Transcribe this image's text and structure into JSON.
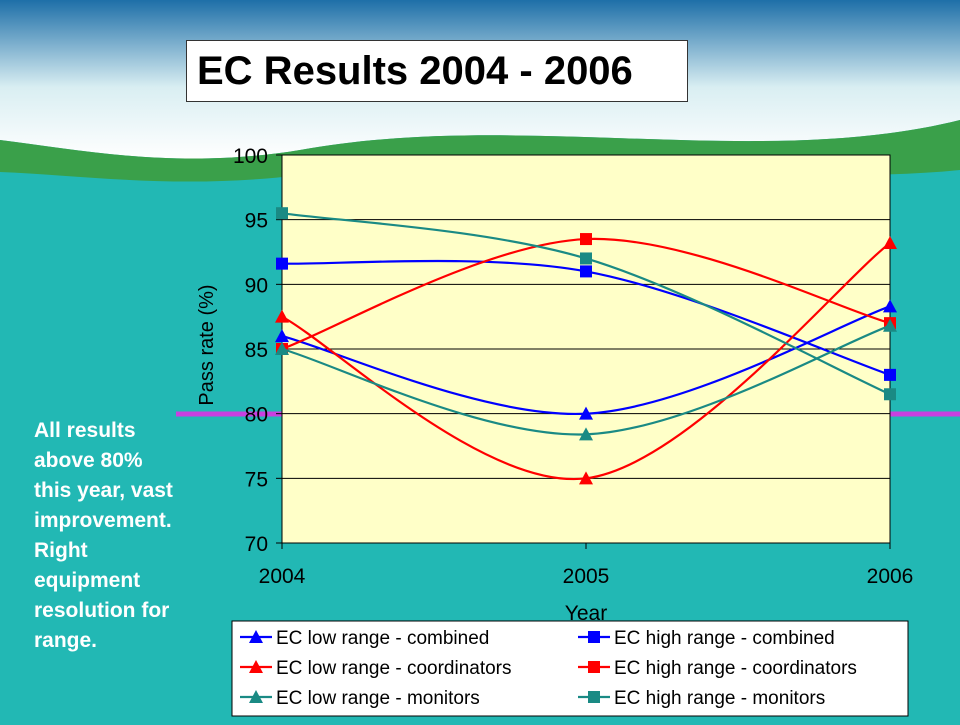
{
  "slide": {
    "title": "EC Results 2004 - 2006",
    "note_lines": [
      "All results",
      "above 80%",
      "this year, vast",
      "improvement.",
      "Right",
      "equipment",
      "resolution for",
      "range."
    ],
    "background_color": "#22b8b4",
    "banner_colors": [
      "#1e6fa8",
      "#d9eef2",
      "#3aa04a"
    ],
    "threshold_line_color": "#c840e0",
    "plot_background_color": "#ffffc8",
    "threshold_value": 80
  },
  "chart_data": {
    "type": "line",
    "title": "",
    "xlabel": "Year",
    "ylabel": "Pass rate (%)",
    "categories": [
      "2004",
      "2005",
      "2006"
    ],
    "ylim": [
      70,
      100
    ],
    "yticks": [
      70,
      75,
      80,
      85,
      90,
      95,
      100
    ],
    "grid": "horizontal",
    "legend_position": "bottom",
    "series": [
      {
        "name": "EC low range - combined",
        "color": "#0000ff",
        "marker": "triangle",
        "values": [
          86,
          80,
          88.3
        ]
      },
      {
        "name": "EC high range - combined",
        "color": "#0000ff",
        "marker": "square",
        "values": [
          91.6,
          91,
          83
        ]
      },
      {
        "name": "EC low range - coordinators",
        "color": "#ff0000",
        "marker": "triangle",
        "values": [
          87.5,
          75,
          93.2
        ]
      },
      {
        "name": "EC high range - coordinators",
        "color": "#ff0000",
        "marker": "square",
        "values": [
          85,
          93.5,
          87
        ]
      },
      {
        "name": "EC low range - monitors",
        "color": "#1a8a84",
        "marker": "triangle",
        "values": [
          85,
          78.4,
          86.8
        ]
      },
      {
        "name": "EC high range - monitors",
        "color": "#1a8a84",
        "marker": "square",
        "values": [
          95.5,
          92,
          81.5
        ]
      }
    ]
  }
}
